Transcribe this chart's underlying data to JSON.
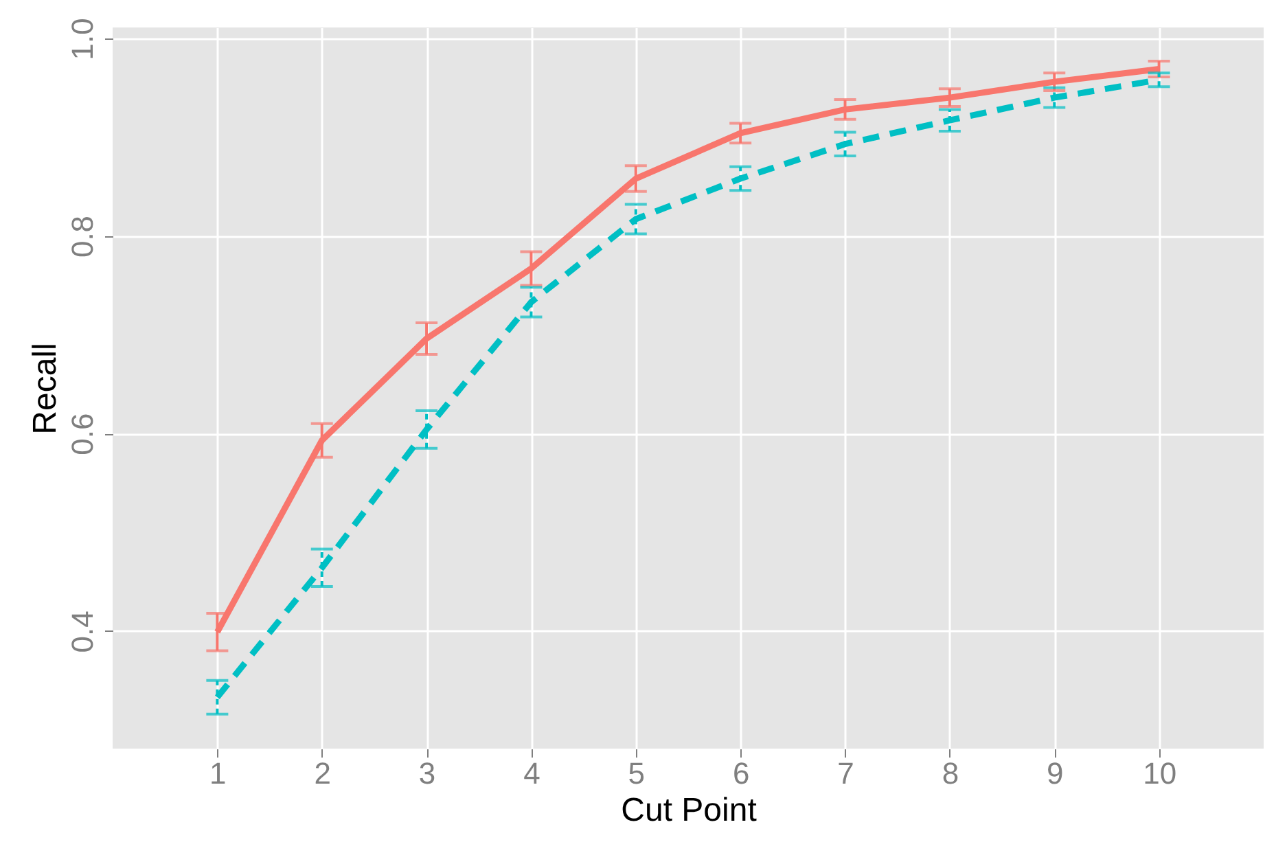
{
  "chart_data": {
    "type": "line",
    "xlabel": "Cut Point",
    "ylabel": "Recall",
    "x": [
      1,
      2,
      3,
      4,
      5,
      6,
      7,
      8,
      9,
      10
    ],
    "series": [
      {
        "color": "#f8766d",
        "line_style": "solid",
        "values": [
          0.399,
          0.593,
          0.696,
          0.767,
          0.858,
          0.904,
          0.928,
          0.94,
          0.956,
          0.969
        ],
        "errors": [
          0.019,
          0.017,
          0.016,
          0.017,
          0.013,
          0.01,
          0.01,
          0.009,
          0.009,
          0.008
        ]
      },
      {
        "color": "#00bfc4",
        "line_style": "dashed",
        "values": [
          0.333,
          0.464,
          0.604,
          0.733,
          0.817,
          0.858,
          0.893,
          0.917,
          0.94,
          0.958
        ],
        "errors": [
          0.017,
          0.019,
          0.019,
          0.015,
          0.015,
          0.012,
          0.012,
          0.011,
          0.01,
          0.007
        ]
      }
    ],
    "xlim": [
      0,
      11
    ],
    "xticks": [
      1,
      2,
      3,
      4,
      5,
      6,
      7,
      8,
      9,
      10
    ],
    "ylim": [
      0.281,
      1.011
    ],
    "yticks": [
      {
        "value": 0.4,
        "label": "0.4"
      },
      {
        "value": 0.6,
        "label": "0.6"
      },
      {
        "value": 0.8,
        "label": "0.8"
      },
      {
        "value": 1.0,
        "label": "1.0"
      }
    ],
    "grid": true
  }
}
